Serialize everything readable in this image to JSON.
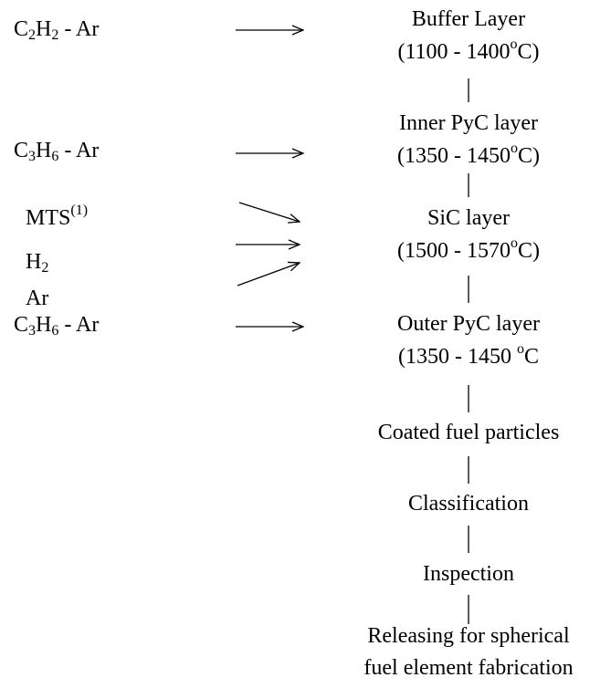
{
  "inputs": [
    {
      "text": [
        "C",
        {
          "sub": "2"
        },
        "H",
        {
          "sub": "2"
        },
        " - Ar"
      ]
    },
    {
      "text": [
        "C",
        {
          "sub": "3"
        },
        "H",
        {
          "sub": "6"
        },
        " - Ar"
      ]
    },
    {
      "text": [
        "MTS",
        {
          "sup": "(1)"
        }
      ]
    },
    {
      "text": [
        "H",
        {
          "sub": "2"
        }
      ]
    },
    {
      "text": [
        "Ar"
      ]
    },
    {
      "text": [
        "C",
        {
          "sub": "3"
        },
        "H",
        {
          "sub": "6"
        },
        " - Ar"
      ]
    }
  ],
  "steps": [
    {
      "lines": [
        [
          "Buffer Layer"
        ],
        [
          "(1100 - 1400",
          {
            "sup": "o"
          },
          "C)"
        ]
      ]
    },
    {
      "lines": [
        [
          "Inner PyC layer"
        ],
        [
          "(1350 - 1450",
          {
            "sup": "o"
          },
          "C)"
        ]
      ]
    },
    {
      "lines": [
        [
          "SiC layer"
        ],
        [
          "(1500 - 1570",
          {
            "sup": "o"
          },
          "C)"
        ]
      ]
    },
    {
      "lines": [
        [
          "Outer PyC layer"
        ],
        [
          "(1350 - 1450 ",
          {
            "sup": "o"
          },
          "C"
        ]
      ]
    },
    {
      "lines": [
        [
          "Coated fuel particles"
        ]
      ]
    },
    {
      "lines": [
        [
          "Classification"
        ]
      ]
    },
    {
      "lines": [
        [
          "Inspection"
        ]
      ]
    },
    {
      "lines": [
        [
          "Releasing for spherical"
        ],
        [
          "fuel element fabrication"
        ]
      ]
    }
  ]
}
